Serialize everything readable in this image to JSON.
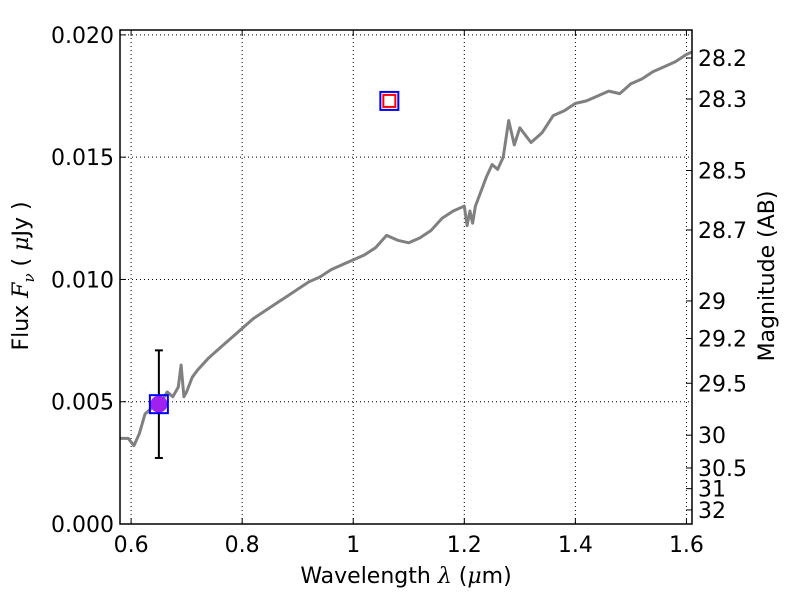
{
  "chart_data": {
    "type": "line",
    "xlabel": "Wavelength  λ (μm)",
    "ylabel": "Flux  F_ν  ( μJy )",
    "ylabel_right": "Magnitude (AB)",
    "xlim": [
      0.58,
      1.61
    ],
    "ylim": [
      0.0,
      0.0202
    ],
    "grid": true,
    "x_ticks": [
      {
        "value": 0.6,
        "label": "0.6"
      },
      {
        "value": 0.8,
        "label": "0.8"
      },
      {
        "value": 1.0,
        "label": "1"
      },
      {
        "value": 1.2,
        "label": "1.2"
      },
      {
        "value": 1.4,
        "label": "1.4"
      },
      {
        "value": 1.6,
        "label": "1.6"
      }
    ],
    "y_ticks": [
      {
        "value": 0.0,
        "label": "0.000"
      },
      {
        "value": 0.005,
        "label": "0.005"
      },
      {
        "value": 0.01,
        "label": "0.010"
      },
      {
        "value": 0.015,
        "label": "0.015"
      },
      {
        "value": 0.02,
        "label": "0.020"
      }
    ],
    "right_ticks": [
      {
        "mag": 28.2,
        "label": "28.2"
      },
      {
        "mag": 28.3,
        "label": "28.3"
      },
      {
        "mag": 28.5,
        "label": "28.5"
      },
      {
        "mag": 28.7,
        "label": "28.7"
      },
      {
        "mag": 29.0,
        "label": "29"
      },
      {
        "mag": 29.2,
        "label": "29.2"
      },
      {
        "mag": 29.5,
        "label": "29.5"
      },
      {
        "mag": 30.0,
        "label": "30"
      },
      {
        "mag": 30.5,
        "label": "30.5"
      },
      {
        "mag": 31.0,
        "label": "31"
      },
      {
        "mag": 32.0,
        "label": "32"
      }
    ],
    "series": [
      {
        "type": "line",
        "color": "#808080",
        "x": [
          0.58,
          0.595,
          0.605,
          0.615,
          0.625,
          0.64,
          0.655,
          0.665,
          0.675,
          0.685,
          0.69,
          0.695,
          0.7,
          0.71,
          0.72,
          0.74,
          0.76,
          0.78,
          0.8,
          0.82,
          0.84,
          0.86,
          0.88,
          0.9,
          0.92,
          0.94,
          0.96,
          0.98,
          1.0,
          1.02,
          1.04,
          1.06,
          1.08,
          1.1,
          1.12,
          1.14,
          1.16,
          1.18,
          1.2,
          1.205,
          1.21,
          1.215,
          1.22,
          1.24,
          1.25,
          1.26,
          1.27,
          1.28,
          1.29,
          1.3,
          1.32,
          1.34,
          1.36,
          1.38,
          1.4,
          1.42,
          1.44,
          1.46,
          1.48,
          1.5,
          1.52,
          1.54,
          1.56,
          1.58,
          1.6,
          1.61
        ],
        "y": [
          0.0035,
          0.0035,
          0.0032,
          0.0037,
          0.0045,
          0.0048,
          0.005,
          0.0054,
          0.0052,
          0.0056,
          0.0065,
          0.0052,
          0.0054,
          0.006,
          0.0063,
          0.0068,
          0.0072,
          0.0076,
          0.008,
          0.0084,
          0.0087,
          0.009,
          0.0093,
          0.0096,
          0.0099,
          0.0101,
          0.0104,
          0.0106,
          0.0108,
          0.011,
          0.0113,
          0.0118,
          0.0116,
          0.0115,
          0.0117,
          0.012,
          0.0125,
          0.0128,
          0.013,
          0.0122,
          0.0128,
          0.0123,
          0.013,
          0.0142,
          0.0147,
          0.0145,
          0.015,
          0.0165,
          0.0155,
          0.0162,
          0.0156,
          0.016,
          0.0167,
          0.0169,
          0.0172,
          0.0173,
          0.0175,
          0.0177,
          0.0176,
          0.018,
          0.0182,
          0.0185,
          0.0187,
          0.0189,
          0.0192,
          0.0193
        ]
      },
      {
        "type": "errorbar",
        "color": "#000000",
        "x": 0.65,
        "y": 0.0049,
        "yerr_low": 0.0027,
        "yerr_high": 0.0071
      },
      {
        "type": "scatter",
        "marker": "circle",
        "color": "#a020f0",
        "points": [
          {
            "x": 0.65,
            "y": 0.0049
          }
        ]
      },
      {
        "type": "scatter",
        "marker": "square",
        "color": "#0000ff",
        "points": [
          {
            "x": 0.65,
            "y": 0.0049
          },
          {
            "x": 1.065,
            "y": 0.0173
          }
        ]
      },
      {
        "type": "scatter",
        "marker": "square",
        "color": "#ff0000",
        "points": [
          {
            "x": 1.065,
            "y": 0.0173
          }
        ]
      }
    ]
  }
}
